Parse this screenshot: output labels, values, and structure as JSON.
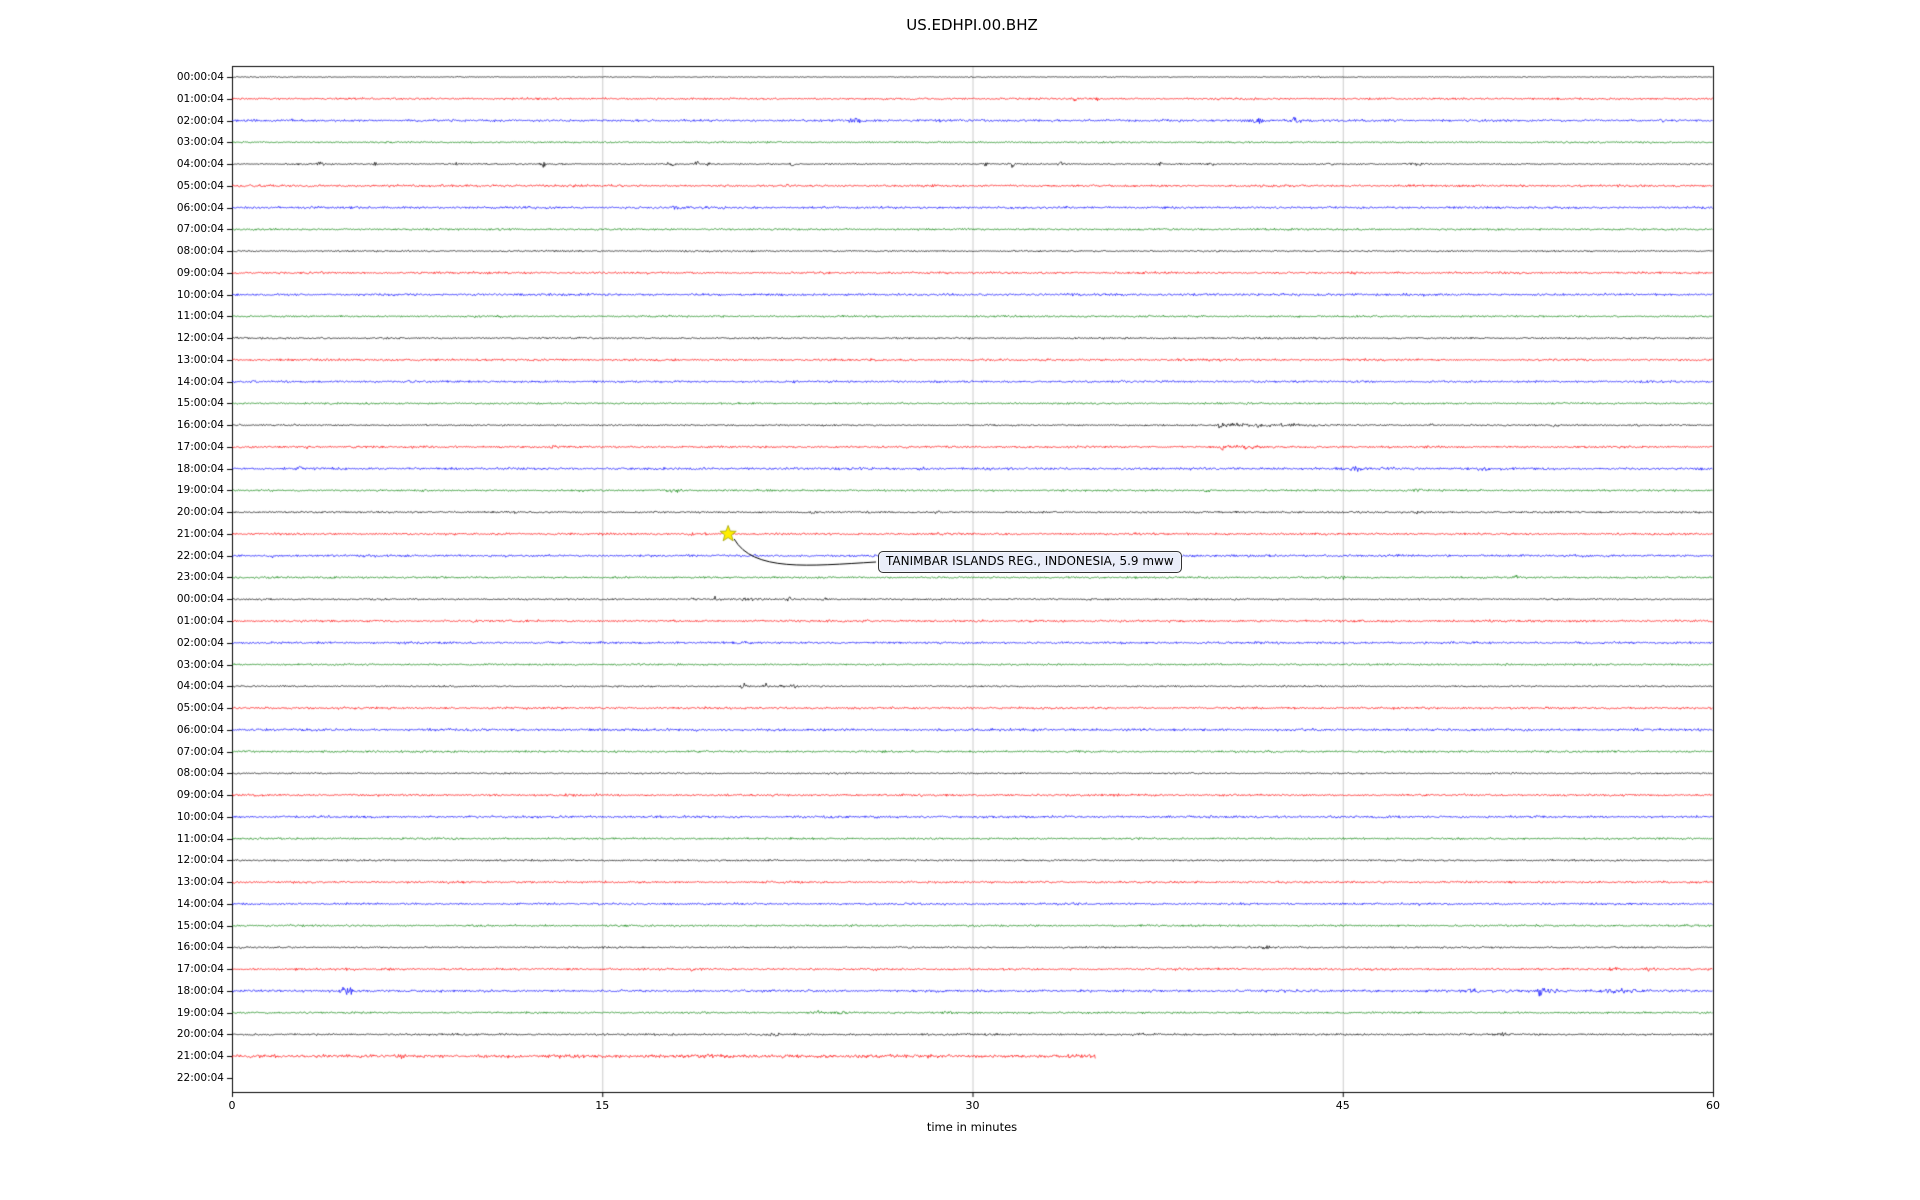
{
  "title": "US.EDHPI.00.BHZ",
  "annotation": {
    "text": "TANIMBAR ISLANDS REG., INDONESIA, 5.9 mww",
    "row_label": "21:00:04",
    "row_index": 21,
    "x_minute": 20.1,
    "marker": "yellow-star"
  },
  "chart_data": {
    "type": "line",
    "subtype": "helicorder-dayplot",
    "title": "US.EDHPI.00.BHZ",
    "xlabel": "time in minutes",
    "x_ticks": [
      0,
      15,
      30,
      45,
      60
    ],
    "x_range": [
      0,
      60
    ],
    "grid": "vertical-only",
    "legend": "none",
    "color_cycle": [
      "#000000",
      "#ff0000",
      "#0000ff",
      "#008000"
    ],
    "note": "Each row is one hour of seismic data; events listed as [minute, relative_amplitude, width_minutes]; noise is base amplitude in px; end is last minute with data.",
    "rows": [
      {
        "label": "00:00:04",
        "color": "#000000",
        "noise": 0.7,
        "end": 60,
        "events": [
          [
            27,
            1.5,
            0.1
          ],
          [
            44,
            1.2,
            0.08
          ]
        ]
      },
      {
        "label": "01:00:04",
        "color": "#ff0000",
        "noise": 1.4,
        "end": 60,
        "events": [
          [
            34.2,
            3.5,
            0.08
          ],
          [
            35,
            1.5,
            0.08
          ]
        ]
      },
      {
        "label": "02:00:04",
        "color": "#0000ff",
        "noise": 1.6,
        "end": 60,
        "events": [
          [
            25.2,
            1.8,
            0.25
          ],
          [
            28.8,
            1.4,
            0.2
          ],
          [
            41.5,
            2.2,
            0.4
          ],
          [
            43,
            1.8,
            0.3
          ]
        ]
      },
      {
        "label": "03:00:04",
        "color": "#008000",
        "noise": 1.2,
        "end": 60,
        "events": []
      },
      {
        "label": "04:00:04",
        "color": "#000000",
        "noise": 1.0,
        "end": 60,
        "events": [
          [
            2.6,
            2.5,
            0.1
          ],
          [
            3.6,
            5,
            0.12
          ],
          [
            5.8,
            3,
            0.1
          ],
          [
            9,
            2,
            0.1
          ],
          [
            12.6,
            3.5,
            0.1
          ],
          [
            13.5,
            2.5,
            0.1
          ],
          [
            17.8,
            3.5,
            0.15
          ],
          [
            18.8,
            3.5,
            0.12
          ],
          [
            19.3,
            2.5,
            0.1
          ],
          [
            22.7,
            2.5,
            0.1
          ],
          [
            30.5,
            3.5,
            0.12
          ],
          [
            31.6,
            3.5,
            0.15
          ],
          [
            33.6,
            4.5,
            0.12
          ],
          [
            37.6,
            2.5,
            0.1
          ],
          [
            39.7,
            2.5,
            0.12
          ],
          [
            44.5,
            1.5,
            0.1
          ],
          [
            48,
            2.5,
            0.3
          ]
        ]
      },
      {
        "label": "05:00:04",
        "color": "#ff0000",
        "noise": 1.5,
        "end": 60,
        "events": [
          [
            22.5,
            1.2,
            0.1
          ]
        ]
      },
      {
        "label": "06:00:04",
        "color": "#0000ff",
        "noise": 1.6,
        "end": 60,
        "events": [
          [
            18,
            1.2,
            0.1
          ]
        ]
      },
      {
        "label": "07:00:04",
        "color": "#008000",
        "noise": 1.3,
        "end": 60,
        "events": []
      },
      {
        "label": "08:00:04",
        "color": "#000000",
        "noise": 1.1,
        "end": 60,
        "events": []
      },
      {
        "label": "09:00:04",
        "color": "#ff0000",
        "noise": 1.5,
        "end": 60,
        "events": []
      },
      {
        "label": "10:00:04",
        "color": "#0000ff",
        "noise": 1.6,
        "end": 60,
        "events": []
      },
      {
        "label": "11:00:04",
        "color": "#008000",
        "noise": 1.3,
        "end": 60,
        "events": []
      },
      {
        "label": "12:00:04",
        "color": "#000000",
        "noise": 1.2,
        "end": 60,
        "events": []
      },
      {
        "label": "13:00:04",
        "color": "#ff0000",
        "noise": 1.5,
        "end": 60,
        "events": []
      },
      {
        "label": "14:00:04",
        "color": "#0000ff",
        "noise": 1.5,
        "end": 60,
        "events": []
      },
      {
        "label": "15:00:04",
        "color": "#008000",
        "noise": 1.3,
        "end": 60,
        "events": []
      },
      {
        "label": "16:00:04",
        "color": "#000000",
        "noise": 1.1,
        "end": 60,
        "events": [
          [
            40,
            7,
            0.15
          ],
          [
            40.5,
            4,
            0.2
          ],
          [
            41.5,
            2,
            0.8
          ],
          [
            43,
            1.2,
            0.8
          ],
          [
            48.5,
            1.8,
            0.15
          ],
          [
            53.6,
            2.2,
            0.12
          ],
          [
            57,
            1.2,
            0.1
          ]
        ]
      },
      {
        "label": "17:00:04",
        "color": "#ff0000",
        "noise": 1.5,
        "end": 60,
        "events": [
          [
            3,
            1.3,
            0.1
          ],
          [
            13,
            1.3,
            0.1
          ],
          [
            40,
            1.6,
            0.3
          ],
          [
            41,
            1.2,
            0.5
          ]
        ]
      },
      {
        "label": "18:00:04",
        "color": "#0000ff",
        "noise": 1.7,
        "end": 60,
        "events": [
          [
            2.7,
            1.8,
            0.15
          ],
          [
            28,
            1.3,
            0.2
          ],
          [
            45.5,
            1.4,
            0.2
          ],
          [
            47,
            1.4,
            0.2
          ],
          [
            50.5,
            1.2,
            0.3
          ]
        ]
      },
      {
        "label": "19:00:04",
        "color": "#008000",
        "noise": 1.3,
        "end": 60,
        "events": [
          [
            17.9,
            2.8,
            0.3
          ],
          [
            39.5,
            1.3,
            0.15
          ],
          [
            48,
            1.3,
            0.2
          ]
        ]
      },
      {
        "label": "20:00:04",
        "color": "#000000",
        "noise": 1.3,
        "end": 60,
        "events": [
          [
            23.5,
            1.4,
            0.15
          ],
          [
            28.6,
            1.5,
            0.15
          ],
          [
            48,
            1.2,
            0.2
          ]
        ]
      },
      {
        "label": "21:00:04",
        "color": "#ff0000",
        "noise": 1.5,
        "end": 60,
        "events": [
          [
            18.6,
            2.2,
            0.1
          ],
          [
            19.2,
            1.4,
            0.1
          ]
        ]
      },
      {
        "label": "22:00:04",
        "color": "#0000ff",
        "noise": 1.6,
        "end": 60,
        "events": [
          [
            1.6,
            2.8,
            0.08
          ]
        ]
      },
      {
        "label": "23:00:04",
        "color": "#008000",
        "noise": 1.3,
        "end": 60,
        "events": [
          [
            42,
            1.5,
            0.12
          ],
          [
            45,
            1.5,
            0.12
          ],
          [
            52,
            1.2,
            0.15
          ]
        ]
      },
      {
        "label": "00:00:04",
        "color": "#000000",
        "noise": 1.2,
        "end": 60,
        "events": [
          [
            18.6,
            1.8,
            0.12
          ],
          [
            19.6,
            2.2,
            0.1
          ],
          [
            21,
            1.3,
            0.3
          ],
          [
            22.6,
            1.8,
            0.12
          ],
          [
            24,
            2.2,
            0.12
          ]
        ]
      },
      {
        "label": "01:00:04",
        "color": "#ff0000",
        "noise": 1.5,
        "end": 60,
        "events": []
      },
      {
        "label": "02:00:04",
        "color": "#0000ff",
        "noise": 1.6,
        "end": 60,
        "events": []
      },
      {
        "label": "03:00:04",
        "color": "#008000",
        "noise": 1.3,
        "end": 60,
        "events": []
      },
      {
        "label": "04:00:04",
        "color": "#000000",
        "noise": 1.1,
        "end": 60,
        "events": [
          [
            20.7,
            4.5,
            0.12
          ],
          [
            21.6,
            2.5,
            0.15
          ],
          [
            22.2,
            2.5,
            0.12
          ],
          [
            22.8,
            2.2,
            0.15
          ]
        ]
      },
      {
        "label": "05:00:04",
        "color": "#ff0000",
        "noise": 1.5,
        "end": 60,
        "events": []
      },
      {
        "label": "06:00:04",
        "color": "#0000ff",
        "noise": 1.7,
        "end": 60,
        "events": []
      },
      {
        "label": "07:00:04",
        "color": "#008000",
        "noise": 1.4,
        "end": 60,
        "events": []
      },
      {
        "label": "08:00:04",
        "color": "#000000",
        "noise": 1.1,
        "end": 60,
        "events": []
      },
      {
        "label": "09:00:04",
        "color": "#ff0000",
        "noise": 1.5,
        "end": 60,
        "events": [
          [
            13.6,
            1,
            0.08
          ]
        ]
      },
      {
        "label": "10:00:04",
        "color": "#0000ff",
        "noise": 1.6,
        "end": 60,
        "events": []
      },
      {
        "label": "11:00:04",
        "color": "#008000",
        "noise": 1.3,
        "end": 60,
        "events": []
      },
      {
        "label": "12:00:04",
        "color": "#000000",
        "noise": 1.2,
        "end": 60,
        "events": []
      },
      {
        "label": "13:00:04",
        "color": "#ff0000",
        "noise": 1.5,
        "end": 60,
        "events": []
      },
      {
        "label": "14:00:04",
        "color": "#0000ff",
        "noise": 1.5,
        "end": 60,
        "events": []
      },
      {
        "label": "15:00:04",
        "color": "#008000",
        "noise": 1.3,
        "end": 60,
        "events": []
      },
      {
        "label": "16:00:04",
        "color": "#000000",
        "noise": 1.2,
        "end": 60,
        "events": [
          [
            41.3,
            1.8,
            0.15
          ],
          [
            41.9,
            1.8,
            0.15
          ]
        ]
      },
      {
        "label": "17:00:04",
        "color": "#ff0000",
        "noise": 1.5,
        "end": 60,
        "events": [
          [
            4.6,
            1.4,
            0.1
          ],
          [
            18.6,
            1.6,
            0.1
          ],
          [
            56,
            2.2,
            0.25
          ],
          [
            57.5,
            1.8,
            0.2
          ]
        ]
      },
      {
        "label": "18:00:04",
        "color": "#0000ff",
        "noise": 1.7,
        "end": 60,
        "events": [
          [
            4.5,
            4.5,
            0.12
          ],
          [
            4.8,
            2.5,
            0.2
          ],
          [
            50.2,
            2.2,
            0.2
          ],
          [
            53,
            3.5,
            0.2
          ],
          [
            53.5,
            2,
            0.4
          ],
          [
            56,
            1.3,
            0.6
          ]
        ]
      },
      {
        "label": "19:00:04",
        "color": "#008000",
        "noise": 1.3,
        "end": 60,
        "events": [
          [
            3.1,
            1.8,
            0.1
          ],
          [
            23.7,
            1.8,
            0.2
          ],
          [
            24.6,
            1.6,
            0.2
          ],
          [
            29,
            1.2,
            0.3
          ],
          [
            30,
            1.7,
            0.2
          ]
        ]
      },
      {
        "label": "20:00:04",
        "color": "#000000",
        "noise": 1.3,
        "end": 60,
        "events": [
          [
            22,
            1.3,
            0.2
          ],
          [
            36.9,
            1.6,
            0.15
          ],
          [
            51.5,
            1.4,
            0.15
          ]
        ]
      },
      {
        "label": "21:00:04",
        "color": "#ff0000",
        "noise": 2.4,
        "end": 35,
        "events": []
      },
      {
        "label": "22:00:04",
        "color": "#000000",
        "noise": 0,
        "end": 0,
        "events": []
      }
    ]
  }
}
